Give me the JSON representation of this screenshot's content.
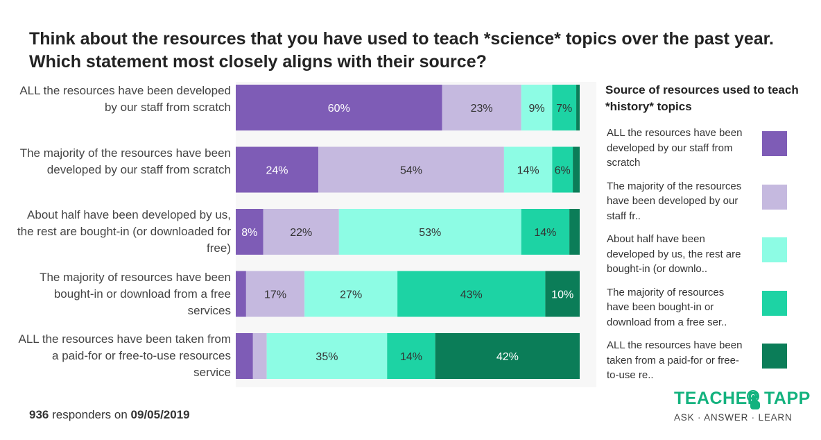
{
  "title": "Think about the resources that you have used to teach *science* topics over the past year. Which statement most closely aligns with their source?",
  "chart_data": {
    "type": "bar",
    "orientation": "horizontal",
    "stacked": true,
    "xlim": [
      0,
      100
    ],
    "categories": [
      "ALL the resources have been developed by our staff from scratch",
      "The majority of the resources have been developed by our staff from scratch",
      "About half have been developed by us, the rest are bought-in (or downloaded for free)",
      "The majority of resources have been bought-in or download from a free services",
      "ALL the resources have been taken from a paid-for or free-to-use resources service"
    ],
    "series": [
      {
        "name": "ALL the resources have been developed by our staff from scratch",
        "color": "#7e5cb6",
        "values": [
          60,
          24,
          8,
          3,
          5
        ]
      },
      {
        "name": "The majority of the resources have been developed by our staff fr..",
        "color": "#c5b9df",
        "values": [
          23,
          54,
          22,
          17,
          4
        ]
      },
      {
        "name": "About half have been developed by us, the rest are bought-in (or downlo..",
        "color": "#8dfce4",
        "values": [
          9,
          14,
          53,
          27,
          35
        ]
      },
      {
        "name": "The majority of resources have been bought-in or download from a free ser..",
        "color": "#1dd3a4",
        "values": [
          7,
          6,
          14,
          43,
          14
        ]
      },
      {
        "name": "ALL the resources have been taken from a paid-for or free-to-use re..",
        "color": "#0b7d58",
        "values": [
          1,
          2,
          3,
          10,
          42
        ]
      }
    ],
    "data_labels": [
      [
        "60%",
        "23%",
        "9%",
        "7%",
        ""
      ],
      [
        "24%",
        "54%",
        "14%",
        "6%",
        ""
      ],
      [
        "8%",
        "22%",
        "53%",
        "14%",
        ""
      ],
      [
        "",
        "17%",
        "27%",
        "43%",
        "10%"
      ],
      [
        "",
        "",
        "35%",
        "14%",
        "42%"
      ]
    ],
    "legend_title": "Source of resources used to teach *history* topics",
    "legend_position": "right"
  },
  "footer": {
    "count": "936",
    "text": "responders on",
    "date": "09/05/2019"
  },
  "logo": {
    "word1": "TEACHER",
    "word2": "TAPP",
    "tagline": "ASK · ANSWER · LEARN",
    "color": "#13b27e"
  }
}
